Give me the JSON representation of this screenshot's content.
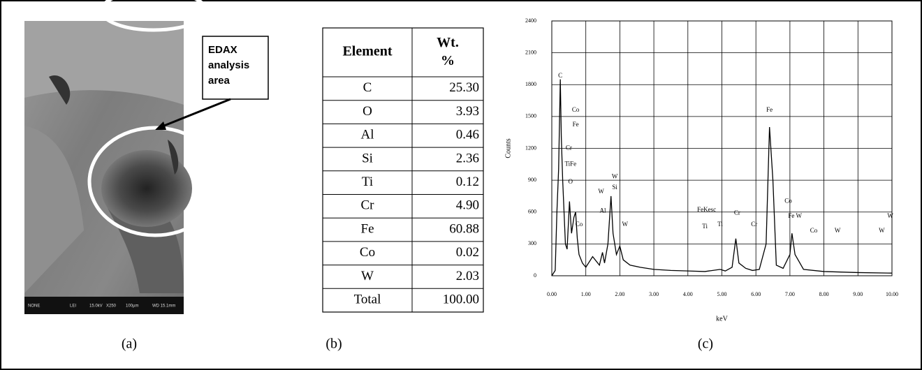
{
  "panels": {
    "a": "(a)",
    "b": "(b)",
    "c": "(c)"
  },
  "image": {
    "callout": [
      "EDAX",
      "analysis",
      "area"
    ],
    "scale_bar": [
      "NONE",
      "LEI",
      "15.0kV",
      "X250",
      "100µm",
      "WD 15.1mm"
    ]
  },
  "table": {
    "header": [
      "Element",
      "Wt. %"
    ],
    "rows": [
      [
        "C",
        "25.30"
      ],
      [
        "O",
        "3.93"
      ],
      [
        "Al",
        "0.46"
      ],
      [
        "Si",
        "2.36"
      ],
      [
        "Ti",
        "0.12"
      ],
      [
        "Cr",
        "4.90"
      ],
      [
        "Fe",
        "60.88"
      ],
      [
        "Co",
        "0.02"
      ],
      [
        "W",
        "2.03"
      ],
      [
        "Total",
        "100.00"
      ]
    ]
  },
  "chart_data": {
    "type": "line",
    "xlabel": "keV",
    "ylabel": "Counts",
    "color": "#000000",
    "grid": true,
    "xlim": [
      0,
      10
    ],
    "ylim": [
      0,
      2400
    ],
    "xticks": [
      {
        "value": 0,
        "label": "0.00"
      },
      {
        "value": 1,
        "label": "1.00"
      },
      {
        "value": 2,
        "label": "2.00"
      },
      {
        "value": 3,
        "label": "3.00"
      },
      {
        "value": 4,
        "label": "4.00"
      },
      {
        "value": 5,
        "label": "5.00"
      },
      {
        "value": 6,
        "label": "6.00"
      },
      {
        "value": 7,
        "label": "7.00"
      },
      {
        "value": 8,
        "label": "8.00"
      },
      {
        "value": 9,
        "label": "9.00"
      },
      {
        "value": 10,
        "label": "10.00"
      }
    ],
    "yticks": [
      0,
      300,
      600,
      900,
      1200,
      1500,
      1800,
      2100,
      2400
    ],
    "x": [
      0.0,
      0.1,
      0.15,
      0.2,
      0.25,
      0.28,
      0.32,
      0.4,
      0.45,
      0.52,
      0.58,
      0.65,
      0.7,
      0.75,
      0.8,
      0.9,
      1.0,
      1.2,
      1.4,
      1.49,
      1.55,
      1.65,
      1.74,
      1.8,
      1.9,
      2.0,
      2.1,
      2.3,
      2.6,
      3.0,
      3.5,
      4.0,
      4.5,
      4.95,
      5.1,
      5.3,
      5.41,
      5.5,
      5.7,
      5.9,
      6.1,
      6.3,
      6.4,
      6.5,
      6.6,
      6.8,
      7.0,
      7.06,
      7.15,
      7.4,
      8.0,
      9.0,
      10.0
    ],
    "values": [
      0,
      50,
      600,
      1000,
      1850,
      1300,
      900,
      300,
      250,
      700,
      400,
      550,
      600,
      350,
      200,
      120,
      80,
      180,
      100,
      220,
      120,
      300,
      750,
      400,
      200,
      280,
      150,
      100,
      80,
      60,
      50,
      45,
      40,
      60,
      45,
      80,
      350,
      120,
      70,
      50,
      60,
      300,
      1400,
      900,
      100,
      70,
      200,
      400,
      200,
      60,
      40,
      30,
      25
    ],
    "annotations": [
      {
        "label": "C",
        "x": 0.25,
        "y": 1880
      },
      {
        "label": "Co",
        "x": 0.7,
        "y": 1560
      },
      {
        "label": "Fe",
        "x": 0.7,
        "y": 1420
      },
      {
        "label": "Cr",
        "x": 0.5,
        "y": 1200
      },
      {
        "label": "TiFe",
        "x": 0.55,
        "y": 1050
      },
      {
        "label": "O",
        "x": 0.55,
        "y": 880
      },
      {
        "label": "Co",
        "x": 0.8,
        "y": 480
      },
      {
        "label": "W",
        "x": 1.45,
        "y": 790
      },
      {
        "label": "Al",
        "x": 1.5,
        "y": 610
      },
      {
        "label": "W",
        "x": 1.85,
        "y": 930
      },
      {
        "label": "Si",
        "x": 1.85,
        "y": 830
      },
      {
        "label": "W",
        "x": 2.15,
        "y": 480
      },
      {
        "label": "FeKesc",
        "x": 4.55,
        "y": 620
      },
      {
        "label": "Ti",
        "x": 4.5,
        "y": 460
      },
      {
        "label": "Ti",
        "x": 4.95,
        "y": 480
      },
      {
        "label": "Cr",
        "x": 5.45,
        "y": 590
      },
      {
        "label": "Cr",
        "x": 5.95,
        "y": 480
      },
      {
        "label": "Fe",
        "x": 6.4,
        "y": 1560
      },
      {
        "label": "Co",
        "x": 6.95,
        "y": 700
      },
      {
        "label": "Fe W",
        "x": 7.15,
        "y": 560
      },
      {
        "label": "Co",
        "x": 7.7,
        "y": 420
      },
      {
        "label": "W",
        "x": 8.4,
        "y": 420
      },
      {
        "label": "W",
        "x": 9.7,
        "y": 420
      },
      {
        "label": "W",
        "x": 9.95,
        "y": 560
      }
    ]
  }
}
